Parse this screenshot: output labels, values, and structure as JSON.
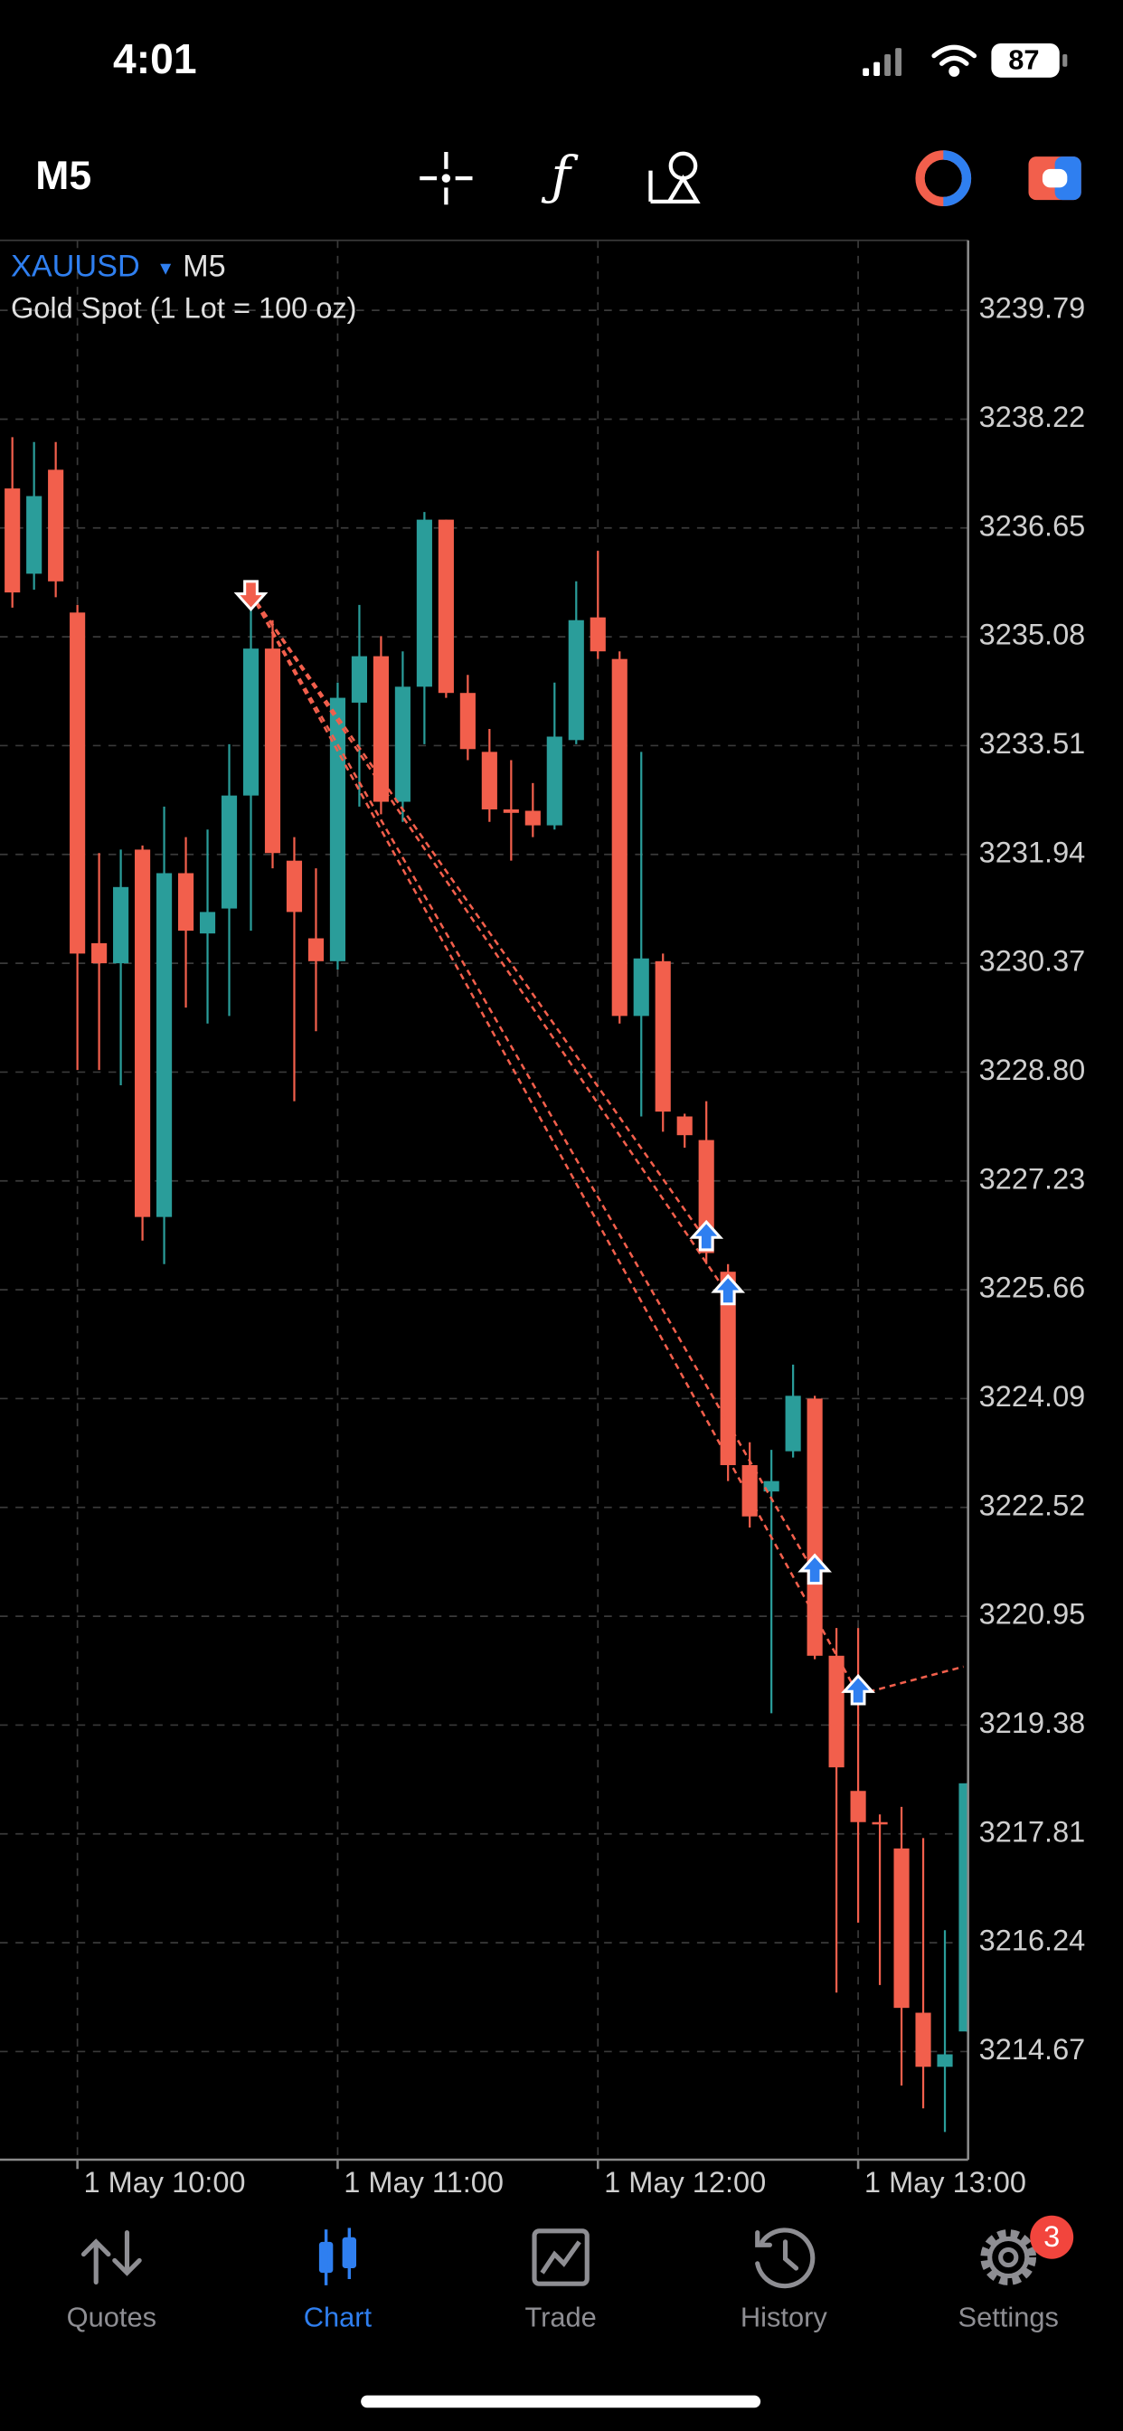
{
  "status_bar": {
    "time": "4:01",
    "battery": "87"
  },
  "toolbar": {
    "timeframe": "M5"
  },
  "chart_data": {
    "type": "candlestick",
    "symbol": "XAUUSD",
    "timeframe": "M5",
    "subtitle": "Gold Spot (1 Lot = 100 oz)",
    "up_color": "#2a9d9a",
    "down_color": "#f25f4c",
    "grid": true,
    "ylim": [
      3213.11,
      3240.8
    ],
    "yticks": [
      3239.79,
      3238.22,
      3236.65,
      3235.08,
      3233.51,
      3231.94,
      3230.37,
      {
        "value": 3228.8,
        "label": "3228.80"
      },
      3227.23,
      3225.66,
      3224.09,
      3222.52,
      3220.95,
      3219.38,
      3217.81,
      3216.24,
      3214.67
    ],
    "xlim": [
      -0.57,
      44.07
    ],
    "xticks": [
      {
        "value": 3,
        "label": "1 May 10:00"
      },
      {
        "value": 15,
        "label": "1 May 11:00"
      },
      {
        "value": 27,
        "label": "1 May 12:00"
      },
      {
        "value": 39,
        "label": "1 May 13:00"
      }
    ],
    "x": [
      0,
      1,
      2,
      3,
      4,
      5,
      6,
      7,
      8,
      9,
      10,
      11,
      12,
      13,
      14,
      15,
      16,
      17,
      18,
      19,
      20,
      21,
      22,
      23,
      24,
      25,
      26,
      27,
      28,
      29,
      30,
      31,
      32,
      33,
      34,
      35,
      36,
      37,
      38,
      39,
      40,
      41,
      42,
      43,
      44
    ],
    "open": [
      3237.22,
      3235.99,
      3237.49,
      3235.43,
      3230.66,
      3230.37,
      3232.01,
      3226.71,
      3231.67,
      3230.8,
      3231.16,
      3232.79,
      3234.91,
      3231.85,
      3230.73,
      3230.4,
      3234.13,
      3234.8,
      3232.7,
      3234.36,
      3236.77,
      3234.27,
      3233.42,
      3232.59,
      3232.57,
      3232.36,
      3233.59,
      3235.36,
      3234.76,
      3229.61,
      3230.4,
      3228.16,
      3227.82,
      3225.92,
      3223.13,
      3222.75,
      3223.33,
      3224.09,
      3220.38,
      3218.43,
      3217.98,
      3217.6,
      3215.23,
      3214.45,
      3214.96
    ],
    "high": [
      3237.96,
      3237.89,
      3237.89,
      3235.54,
      3231.96,
      3232.01,
      3232.07,
      3232.63,
      3232.19,
      3232.3,
      3233.53,
      3235.76,
      3235.32,
      3232.19,
      3231.74,
      3234.42,
      3235.54,
      3235.09,
      3234.87,
      3236.88,
      3236.77,
      3234.53,
      3233.75,
      3233.3,
      3232.97,
      3234.42,
      3235.88,
      3236.32,
      3234.87,
      3233.42,
      3230.51,
      3228.2,
      3228.38,
      3226.03,
      3223.46,
      3223.35,
      3224.58,
      3224.13,
      3220.78,
      3220.78,
      3218.09,
      3218.2,
      3217.75,
      3216.42,
      3218.54
    ],
    "low": [
      3235.5,
      3235.76,
      3235.65,
      3228.83,
      3228.83,
      3228.61,
      3226.37,
      3226.03,
      3229.73,
      3229.5,
      3229.61,
      3230.84,
      3231.74,
      3228.38,
      3229.39,
      3230.28,
      3232.63,
      3232.52,
      3232.41,
      3233.53,
      3234.2,
      3233.3,
      3232.41,
      3231.85,
      3232.19,
      3232.3,
      3233.53,
      3234.76,
      3229.5,
      3228.16,
      3227.94,
      3227.71,
      3226.03,
      3222.9,
      3222.23,
      3219.55,
      3223.24,
      3220.33,
      3215.52,
      3216.53,
      3215.63,
      3214.18,
      3213.85,
      3213.51,
      3214.96
    ],
    "close": [
      3235.72,
      3237.11,
      3235.88,
      3230.51,
      3230.37,
      3231.47,
      3226.71,
      3231.67,
      3230.84,
      3231.11,
      3232.79,
      3234.91,
      3231.96,
      3231.11,
      3230.4,
      3234.2,
      3234.8,
      3232.7,
      3234.36,
      3236.77,
      3234.27,
      3233.46,
      3232.59,
      3232.54,
      3232.36,
      3233.64,
      3235.32,
      3234.87,
      3229.61,
      3230.44,
      3228.23,
      3227.89,
      3226.19,
      3223.13,
      3222.39,
      3222.9,
      3224.13,
      3220.38,
      3218.77,
      3217.98,
      3217.96,
      3215.3,
      3214.45,
      3214.63,
      3218.54
    ],
    "trades": {
      "sell": {
        "x": 11,
        "price": 3235.7
      },
      "buys": [
        {
          "x": 32,
          "price": 3226.37
        },
        {
          "x": 33,
          "price": 3225.59
        },
        {
          "x": 37,
          "price": 3221.56
        },
        {
          "x": 39,
          "price": 3219.82
        }
      ]
    }
  },
  "tabs": [
    {
      "label": "Quotes"
    },
    {
      "label": "Chart"
    },
    {
      "label": "Trade"
    },
    {
      "label": "History"
    },
    {
      "label": "Settings"
    }
  ],
  "settings_badge": "3"
}
